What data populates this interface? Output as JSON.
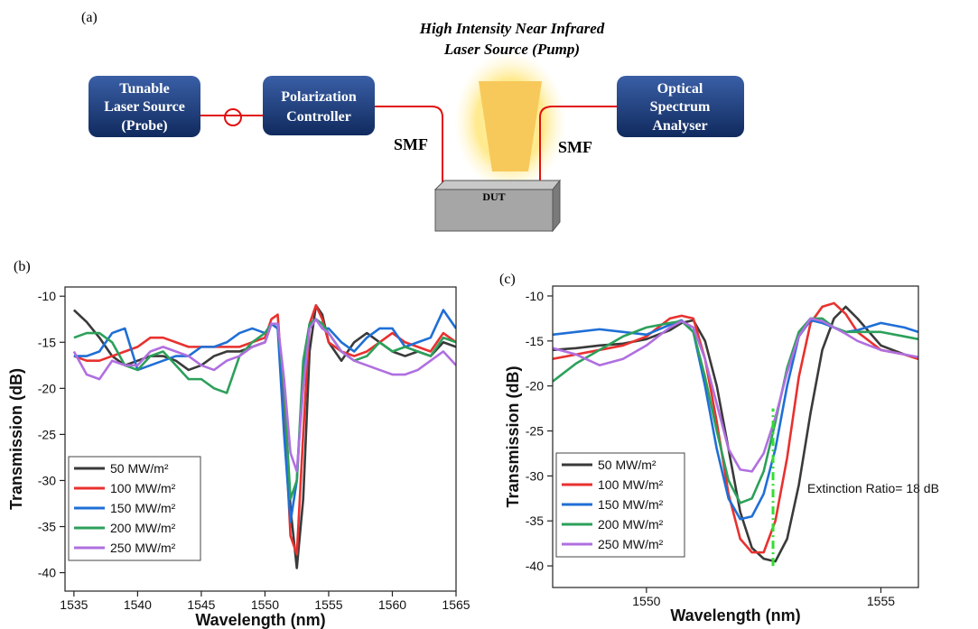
{
  "diagram": {
    "label": "(a)",
    "pump": [
      "High Intensity Near Infrared",
      "Laser Source (Pump)"
    ],
    "boxes": [
      [
        "Tunable",
        "Laser Source",
        "(Probe)"
      ],
      [
        "Polarization",
        "Controller"
      ],
      [
        "Optical",
        "Spectrum",
        "Analyser"
      ]
    ],
    "dut": "DUT",
    "smf": [
      "SMF",
      "SMF"
    ]
  },
  "chart_data": [
    {
      "type": "line",
      "panel": "(b)",
      "x_label": "Wavelength (nm)",
      "y_label": "Transmission (dB)",
      "xlim": [
        1534.3,
        1565
      ],
      "xticks": [
        1535,
        1540,
        1545,
        1550,
        1555,
        1560,
        1565
      ],
      "ylim": [
        -42,
        -9
      ],
      "yticks": [
        -40,
        -35,
        -30,
        -25,
        -20,
        -15,
        -10
      ],
      "legend": "lower left",
      "x": [
        1535,
        1536,
        1537,
        1538,
        1539,
        1540,
        1541,
        1542,
        1543,
        1544,
        1545,
        1546,
        1547,
        1548,
        1549,
        1550,
        1550.5,
        1551,
        1551.5,
        1552,
        1552.5,
        1553,
        1553.5,
        1554,
        1554.5,
        1555,
        1556,
        1557,
        1558,
        1559,
        1560,
        1561,
        1562,
        1563,
        1564,
        1565
      ],
      "series": [
        {
          "name": "50 MW/m²",
          "color": "#3a3a3a",
          "values": [
            -11.5,
            -12.8,
            -14.5,
            -16.5,
            -17.5,
            -17,
            -16.5,
            -16.5,
            -17,
            -18,
            -17.5,
            -16.5,
            -16,
            -16,
            -15.5,
            -15,
            -13,
            -13.5,
            -20,
            -33,
            -39.5,
            -32,
            -16,
            -11,
            -12,
            -15,
            -17,
            -15,
            -14,
            -15,
            -16,
            -16.5,
            -16,
            -16.5,
            -15,
            -15.5
          ]
        },
        {
          "name": "100 MW/m²",
          "color": "#e8312f",
          "values": [
            -16.5,
            -17,
            -17,
            -16.5,
            -16,
            -15.5,
            -14.5,
            -14.5,
            -15,
            -15.5,
            -15.5,
            -15.5,
            -15.5,
            -15.5,
            -15,
            -14.5,
            -12.5,
            -12,
            -22,
            -36,
            -38,
            -25,
            -13,
            -11,
            -12.5,
            -15,
            -16,
            -16.5,
            -16,
            -15,
            -14,
            -15,
            -15.5,
            -16,
            -14,
            -15
          ]
        },
        {
          "name": "150 MW/m²",
          "color": "#1f6fd6",
          "values": [
            -16.5,
            -16.5,
            -16,
            -14,
            -13.5,
            -18,
            -17.5,
            -17,
            -16.5,
            -16.5,
            -15.5,
            -15.5,
            -15,
            -14,
            -13.5,
            -14,
            -13,
            -13.5,
            -25,
            -34.5,
            -30,
            -18,
            -13,
            -12.5,
            -13.5,
            -13.5,
            -15,
            -16,
            -14.5,
            -13.5,
            -13.5,
            -15.5,
            -15,
            -14.5,
            -11.5,
            -13.5
          ]
        },
        {
          "name": "200 MW/m²",
          "color": "#2ca05a",
          "values": [
            -14.5,
            -14,
            -14,
            -15,
            -17.5,
            -18,
            -16.5,
            -16,
            -17.5,
            -19,
            -19,
            -20,
            -20.5,
            -16.5,
            -15,
            -14,
            -13,
            -13,
            -20,
            -32,
            -30,
            -17,
            -13,
            -12.5,
            -13,
            -14,
            -16,
            -17,
            -16.5,
            -15,
            -16,
            -15.5,
            -16,
            -16.5,
            -14.5,
            -15
          ]
        },
        {
          "name": "250 MW/m²",
          "color": "#b06fe0",
          "values": [
            -16,
            -18.5,
            -19,
            -17,
            -17.5,
            -17.5,
            -16,
            -15.5,
            -16,
            -16.5,
            -17.5,
            -18,
            -17,
            -16.5,
            -15.5,
            -15,
            -13,
            -13,
            -19,
            -27,
            -29,
            -20,
            -13.5,
            -12.5,
            -13.5,
            -14,
            -16,
            -17,
            -17.5,
            -18,
            -18.5,
            -18.5,
            -18,
            -17,
            -16,
            -17.5
          ]
        }
      ]
    },
    {
      "type": "line",
      "panel": "(c)",
      "x_label": "Wavelength (nm)",
      "y_label": "Transmission (dB)",
      "xlim": [
        1548,
        1555.8
      ],
      "xticks": [
        1550,
        1555
      ],
      "ylim": [
        -42.4,
        -8.9
      ],
      "yticks": [
        -40,
        -35,
        -30,
        -25,
        -20,
        -15,
        -10
      ],
      "legend": "lower left",
      "annotation": "Extinction Ratio= 18 dB",
      "reference_line": {
        "x": 1552.7,
        "y": [
          -40,
          -22.5
        ],
        "color": "#33dd33"
      },
      "x": [
        1548,
        1548.5,
        1549,
        1549.5,
        1550,
        1550.5,
        1550.75,
        1551,
        1551.25,
        1551.5,
        1551.75,
        1552,
        1552.25,
        1552.5,
        1552.75,
        1553,
        1553.25,
        1553.5,
        1553.75,
        1554,
        1554.25,
        1554.5,
        1555,
        1555.5,
        1555.8
      ],
      "series": [
        {
          "name": "50 MW/m²",
          "color": "#3a3a3a",
          "values": [
            -16,
            -15.8,
            -15.5,
            -15.3,
            -14.8,
            -13.8,
            -13,
            -12.7,
            -15,
            -20,
            -27,
            -34,
            -38,
            -39.2,
            -39.5,
            -37,
            -31,
            -23,
            -16,
            -12.5,
            -11.2,
            -12.5,
            -15.5,
            -16.5,
            -17
          ]
        },
        {
          "name": "100 MW/m²",
          "color": "#e8312f",
          "values": [
            -17,
            -16.5,
            -16,
            -15.5,
            -14.5,
            -12.5,
            -12.2,
            -12.5,
            -17,
            -24,
            -32,
            -37,
            -38.5,
            -38.5,
            -35,
            -28,
            -19,
            -13,
            -11.2,
            -10.8,
            -12,
            -14,
            -16,
            -16.5,
            -17
          ]
        },
        {
          "name": "150 MW/m²",
          "color": "#1f6fd6",
          "values": [
            -14.3,
            -14,
            -13.7,
            -14,
            -14.3,
            -13.2,
            -12.7,
            -14,
            -20,
            -27,
            -32.5,
            -34.8,
            -34.5,
            -32,
            -27,
            -20,
            -14.5,
            -12.7,
            -13,
            -13.5,
            -14,
            -13.8,
            -13,
            -13.5,
            -14
          ]
        },
        {
          "name": "200 MW/m²",
          "color": "#2ca05a",
          "values": [
            -19.5,
            -17.5,
            -16,
            -14.5,
            -13.5,
            -13,
            -12.8,
            -14,
            -19,
            -25,
            -30.5,
            -33,
            -32.5,
            -29.5,
            -24,
            -18,
            -14,
            -12.5,
            -12.5,
            -13.5,
            -14,
            -14,
            -14,
            -14.5,
            -14.8
          ]
        },
        {
          "name": "250 MW/m²",
          "color": "#b06fe0",
          "values": [
            -15.8,
            -16.5,
            -17.7,
            -17,
            -15.5,
            -13.5,
            -12.8,
            -13.5,
            -17,
            -22,
            -27,
            -29.3,
            -29.5,
            -27.5,
            -23.5,
            -18.5,
            -14.5,
            -12.5,
            -12.8,
            -13.5,
            -14.2,
            -15,
            -16,
            -16.5,
            -16.8
          ]
        }
      ]
    }
  ]
}
